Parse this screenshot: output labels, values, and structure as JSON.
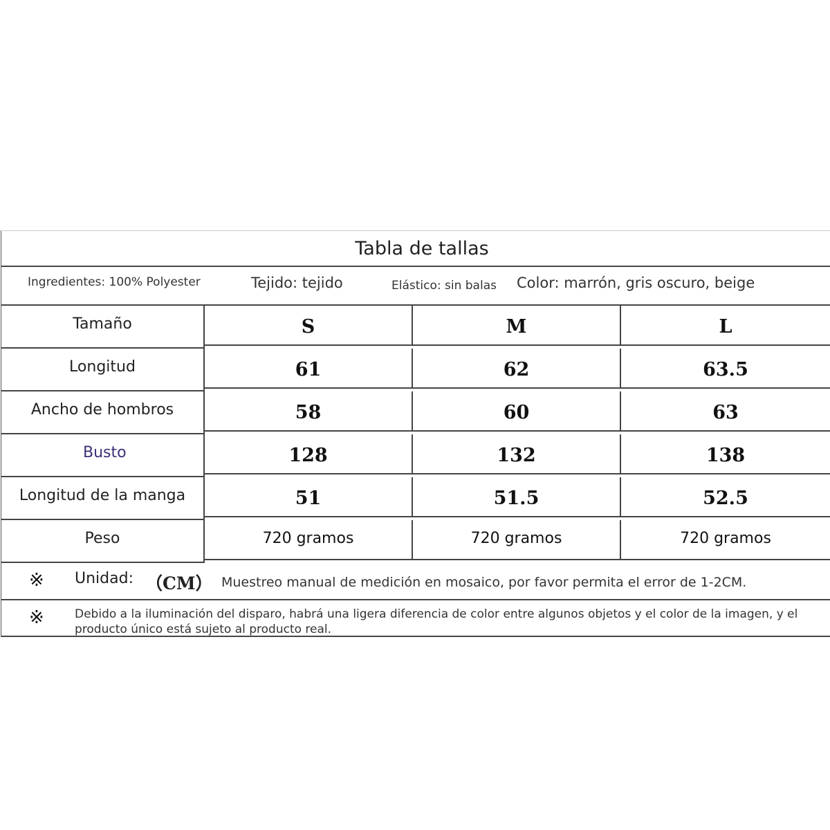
{
  "title": "Tabla de tallas",
  "info": {
    "ingredients": "Ingredientes: 100% Polyester",
    "fabric": "Tejido: tejido",
    "elastic": "Elástico: sin balas",
    "color": "Color: marrón, gris oscuro, beige"
  },
  "table": {
    "header": {
      "label": "Tamaño",
      "sizes": [
        "S",
        "M",
        "L"
      ]
    },
    "rows": [
      {
        "label": "Longitud",
        "values": [
          "61",
          "62",
          "63.5"
        ]
      },
      {
        "label": "Ancho de hombros",
        "values": [
          "58",
          "60",
          "63"
        ]
      },
      {
        "label": "Busto",
        "values": [
          "128",
          "132",
          "138"
        ]
      },
      {
        "label": "Longitud de la manga",
        "values": [
          "51",
          "51.5",
          "52.5"
        ]
      },
      {
        "label": "Peso",
        "values": [
          "720 gramos",
          "720 gramos",
          "720 gramos"
        ]
      }
    ]
  },
  "notes": {
    "mark": "※",
    "unit_label": "Unidad:",
    "unit_value": "（CM）",
    "measurement": "Muestreo manual de medición en mosaico, por favor permita el error de 1-2CM.",
    "color_disclaimer": "Debido a la iluminación del disparo, habrá una ligera diferencia de color entre algunos objetos y el color de la imagen, y el producto único está sujeto al producto real."
  },
  "colors": {
    "busto_label": "#3a3278"
  }
}
